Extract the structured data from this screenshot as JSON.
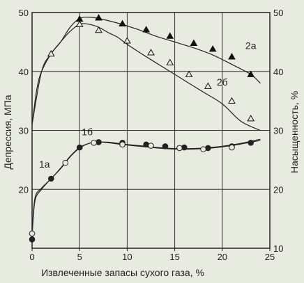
{
  "chart_data": {
    "type": "line",
    "title": "",
    "xlabel": "Извлеченные запасы сухого газа, %",
    "ylabel_left": "Депрессия, МПа",
    "ylabel_right": "Насыщенность, %",
    "xlim": [
      0,
      25
    ],
    "ylim_left": [
      10,
      50
    ],
    "ylim_right": [
      10,
      50
    ],
    "xticks": [
      "0",
      "5",
      "10",
      "15",
      "20",
      "25"
    ],
    "yticks_left": [
      "20",
      "30",
      "40",
      "50"
    ],
    "yticks_right": [
      "10",
      "20",
      "30",
      "40",
      "50"
    ],
    "grid": true,
    "series": [
      {
        "name": "2а",
        "marker": "filled-triangle",
        "curve_x": [
          0,
          0.5,
          1,
          2,
          3,
          4,
          5,
          6,
          7,
          9,
          11,
          13,
          15,
          17,
          19,
          21,
          23,
          24
        ],
        "curve_y": [
          31,
          37,
          40,
          43,
          45,
          47.5,
          49,
          49.2,
          49,
          48.2,
          47.2,
          46,
          45,
          44,
          42.8,
          41.2,
          39.5,
          38
        ],
        "marker_x": [
          5,
          7,
          9.5,
          12,
          14.5,
          17,
          19,
          21,
          23
        ],
        "marker_y": [
          48.9,
          49.1,
          48.1,
          47.1,
          46,
          44.8,
          43.8,
          42.5,
          39.5
        ]
      },
      {
        "name": "2б",
        "marker": "open-triangle",
        "curve_x": [
          0,
          1,
          2,
          3,
          4,
          5,
          6,
          7,
          8,
          9,
          10,
          12,
          14,
          16,
          18,
          20,
          22,
          24
        ],
        "curve_y": [
          31,
          40,
          43,
          45,
          46.8,
          48,
          48,
          47.5,
          46.6,
          45.8,
          44.6,
          42.5,
          40.5,
          38.5,
          36.5,
          34.5,
          31.5,
          30
        ],
        "marker_x": [
          2,
          5,
          7,
          10,
          12.5,
          14.5,
          16.5,
          18.5,
          21,
          23
        ],
        "marker_y": [
          43,
          48,
          47,
          45.2,
          43.2,
          41.5,
          39.5,
          37.5,
          35,
          32
        ]
      },
      {
        "name": "1а",
        "marker": "filled-circle",
        "curve_x": [
          0,
          0.3,
          1,
          2,
          3,
          4,
          5,
          6,
          7,
          8,
          9,
          10,
          12,
          14,
          16,
          18,
          20,
          22,
          24
        ],
        "curve_y": [
          12,
          18,
          20,
          21.8,
          23.5,
          25.5,
          27,
          27.8,
          28,
          28,
          27.8,
          27.6,
          27.3,
          27,
          26.9,
          27,
          27.3,
          27.8,
          28.5
        ],
        "marker_x": [
          0,
          2,
          5,
          7,
          9.5,
          12,
          14,
          16,
          18.5,
          21,
          23
        ],
        "marker_y": [
          11.5,
          21.8,
          27.1,
          28,
          27.9,
          27.6,
          27.3,
          27.1,
          27,
          27.3,
          27.9
        ]
      },
      {
        "name": "1б",
        "marker": "open-circle",
        "curve_x": [
          0,
          0.3,
          1,
          2,
          3,
          4,
          5,
          6,
          7,
          8,
          9,
          10,
          12,
          14,
          16,
          18,
          20,
          22,
          24
        ],
        "curve_y": [
          12.5,
          18.5,
          20.2,
          21.8,
          23.6,
          25.6,
          27.1,
          27.8,
          28,
          27.9,
          27.7,
          27.5,
          27.2,
          26.9,
          26.8,
          26.9,
          27.2,
          27.7,
          28.3
        ],
        "marker_x": [
          0,
          3.5,
          6.5,
          9.5,
          12.5,
          15.5,
          18,
          21
        ],
        "marker_y": [
          12.5,
          24.5,
          27.9,
          27.6,
          27.4,
          27,
          26.8,
          27.1
        ]
      }
    ],
    "annotations": [
      {
        "text": "2а",
        "x": 23,
        "y": 43.8
      },
      {
        "text": "2б",
        "x": 20,
        "y": 37.6
      },
      {
        "text": "1б",
        "x": 5.8,
        "y": 29.2
      },
      {
        "text": "1а",
        "x": 1.3,
        "y": 23.7
      }
    ]
  }
}
